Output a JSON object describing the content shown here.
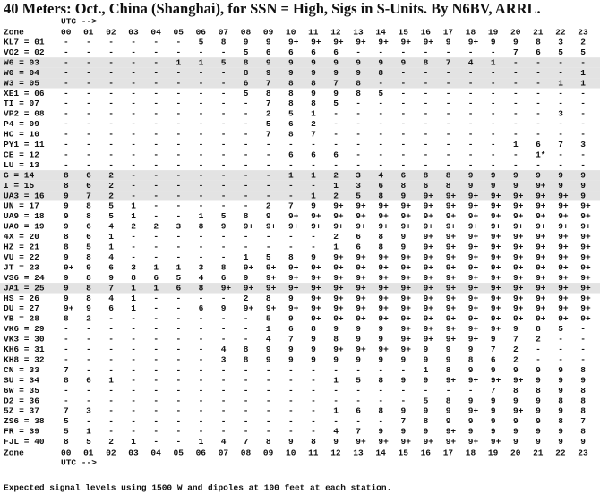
{
  "header": {
    "title": "40 Meters: Oct., China (Shanghai), for SSN = High, Sigs in S-Units. By N6BV, ARRL."
  },
  "table": {
    "utc_label": "UTC -->",
    "zone_label": "Zone",
    "hours": [
      "00",
      "01",
      "02",
      "03",
      "04",
      "05",
      "06",
      "07",
      "08",
      "09",
      "10",
      "11",
      "12",
      "13",
      "14",
      "15",
      "16",
      "17",
      "18",
      "19",
      "20",
      "21",
      "22",
      "23"
    ],
    "rows": [
      {
        "zone": "KL7 = 01",
        "shaded": false,
        "values": [
          "-",
          "-",
          "-",
          "-",
          "-",
          "-",
          "5",
          "8",
          "9",
          "9",
          "9+",
          "9+",
          "9+",
          "9+",
          "9+",
          "9+",
          "9+",
          "9",
          "9+",
          "9",
          "9",
          "8",
          "3",
          "2"
        ]
      },
      {
        "zone": "VO2 = 02",
        "shaded": false,
        "values": [
          "-",
          "-",
          "-",
          "-",
          "-",
          "-",
          "-",
          "-",
          "5",
          "6",
          "6",
          "6",
          "6",
          "-",
          "-",
          "-",
          "-",
          "-",
          "-",
          "-",
          "7",
          "6",
          "5",
          "5"
        ]
      },
      {
        "zone": "W6 = 03",
        "shaded": true,
        "values": [
          "-",
          "-",
          "-",
          "-",
          "-",
          "1",
          "1",
          "5",
          "8",
          "9",
          "9",
          "9",
          "9",
          "9",
          "9",
          "9",
          "8",
          "7",
          "4",
          "1",
          "-",
          "-",
          "-",
          "-"
        ]
      },
      {
        "zone": "W0 = 04",
        "shaded": true,
        "values": [
          "-",
          "-",
          "-",
          "-",
          "-",
          "-",
          "-",
          "-",
          "8",
          "9",
          "9",
          "9",
          "9",
          "9",
          "8",
          "-",
          "-",
          "-",
          "-",
          "-",
          "-",
          "-",
          "-",
          "1"
        ]
      },
      {
        "zone": "W3 = 05",
        "shaded": true,
        "values": [
          "-",
          "-",
          "-",
          "-",
          "-",
          "-",
          "-",
          "-",
          "6",
          "7",
          "8",
          "8",
          "7",
          "8",
          "-",
          "-",
          "-",
          "-",
          "-",
          "-",
          "-",
          "-",
          "1",
          "1"
        ]
      },
      {
        "zone": "XE1 = 06",
        "shaded": false,
        "values": [
          "-",
          "-",
          "-",
          "-",
          "-",
          "-",
          "-",
          "-",
          "5",
          "8",
          "8",
          "9",
          "9",
          "8",
          "5",
          "-",
          "-",
          "-",
          "-",
          "-",
          "-",
          "-",
          "-",
          "-"
        ]
      },
      {
        "zone": "TI = 07",
        "shaded": false,
        "values": [
          "-",
          "-",
          "-",
          "-",
          "-",
          "-",
          "-",
          "-",
          "-",
          "7",
          "8",
          "8",
          "5",
          "-",
          "-",
          "-",
          "-",
          "-",
          "-",
          "-",
          "-",
          "-",
          "-",
          "-"
        ]
      },
      {
        "zone": "VP2 = 08",
        "shaded": false,
        "values": [
          "-",
          "-",
          "-",
          "-",
          "-",
          "-",
          "-",
          "-",
          "-",
          "2",
          "5",
          "1",
          "-",
          "-",
          "-",
          "-",
          "-",
          "-",
          "-",
          "-",
          "-",
          "-",
          "3",
          "-"
        ]
      },
      {
        "zone": "P4 = 09",
        "shaded": false,
        "values": [
          "-",
          "-",
          "-",
          "-",
          "-",
          "-",
          "-",
          "-",
          "-",
          "5",
          "6",
          "2",
          "-",
          "-",
          "-",
          "-",
          "-",
          "-",
          "-",
          "-",
          "-",
          "-",
          "-",
          "-"
        ]
      },
      {
        "zone": "HC = 10",
        "shaded": false,
        "values": [
          "-",
          "-",
          "-",
          "-",
          "-",
          "-",
          "-",
          "-",
          "-",
          "7",
          "8",
          "7",
          "-",
          "-",
          "-",
          "-",
          "-",
          "-",
          "-",
          "-",
          "-",
          "-",
          "-",
          "-"
        ]
      },
      {
        "zone": "PY1 = 11",
        "shaded": false,
        "values": [
          "-",
          "-",
          "-",
          "-",
          "-",
          "-",
          "-",
          "-",
          "-",
          "-",
          "-",
          "-",
          "-",
          "-",
          "-",
          "-",
          "-",
          "-",
          "-",
          "-",
          "1",
          "6",
          "7",
          "3"
        ]
      },
      {
        "zone": "CE = 12",
        "shaded": false,
        "values": [
          "-",
          "-",
          "-",
          "-",
          "-",
          "-",
          "-",
          "-",
          "-",
          "-",
          "6",
          "6",
          "6",
          "-",
          "-",
          "-",
          "-",
          "-",
          "-",
          "-",
          "-",
          "1*",
          "-",
          "-"
        ]
      },
      {
        "zone": "LU = 13",
        "shaded": false,
        "values": [
          "-",
          "-",
          "-",
          "-",
          "-",
          "-",
          "-",
          "-",
          "-",
          "-",
          "-",
          "-",
          "-",
          "-",
          "-",
          "-",
          "-",
          "-",
          "-",
          "-",
          "-",
          "-",
          "-",
          "-"
        ]
      },
      {
        "zone": "G = 14",
        "shaded": true,
        "values": [
          "8",
          "6",
          "2",
          "-",
          "-",
          "-",
          "-",
          "-",
          "-",
          "-",
          "1",
          "1",
          "2",
          "3",
          "4",
          "6",
          "8",
          "8",
          "9",
          "9",
          "9",
          "9",
          "9",
          "9"
        ]
      },
      {
        "zone": "I = 15",
        "shaded": true,
        "values": [
          "8",
          "6",
          "2",
          "-",
          "-",
          "-",
          "-",
          "-",
          "-",
          "-",
          "-",
          "-",
          "1",
          "3",
          "6",
          "8",
          "6",
          "8",
          "9",
          "9",
          "9",
          "9+",
          "9",
          "9"
        ]
      },
      {
        "zone": "UA3 = 16",
        "shaded": true,
        "values": [
          "9",
          "7",
          "2",
          "-",
          "-",
          "-",
          "-",
          "-",
          "-",
          "-",
          "-",
          "1",
          "2",
          "5",
          "8",
          "9",
          "9+",
          "9+",
          "9+",
          "9+",
          "9+",
          "9+",
          "9+",
          "9"
        ]
      },
      {
        "zone": "UN = 17",
        "shaded": false,
        "values": [
          "9",
          "8",
          "5",
          "1",
          "-",
          "-",
          "-",
          "-",
          "-",
          "2",
          "7",
          "9",
          "9+",
          "9+",
          "9+",
          "9+",
          "9+",
          "9+",
          "9+",
          "9+",
          "9+",
          "9+",
          "9+",
          "9+"
        ]
      },
      {
        "zone": "UA9 = 18",
        "shaded": false,
        "values": [
          "9",
          "8",
          "5",
          "1",
          "-",
          "-",
          "1",
          "5",
          "8",
          "9",
          "9+",
          "9+",
          "9+",
          "9+",
          "9+",
          "9+",
          "9+",
          "9+",
          "9+",
          "9+",
          "9+",
          "9+",
          "9+",
          "9+"
        ]
      },
      {
        "zone": "UA0 = 19",
        "shaded": false,
        "values": [
          "9",
          "6",
          "4",
          "2",
          "2",
          "3",
          "8",
          "9",
          "9+",
          "9+",
          "9+",
          "9+",
          "9+",
          "9+",
          "9+",
          "9+",
          "9+",
          "9+",
          "9+",
          "9+",
          "9+",
          "9+",
          "9+",
          "9+"
        ]
      },
      {
        "zone": "4X = 20",
        "shaded": false,
        "values": [
          "8",
          "6",
          "1",
          "-",
          "-",
          "-",
          "-",
          "-",
          "-",
          "-",
          "-",
          "-",
          "2",
          "6",
          "8",
          "9",
          "9+",
          "9+",
          "9+",
          "9+",
          "9+",
          "9+",
          "9+",
          "9+"
        ]
      },
      {
        "zone": "HZ = 21",
        "shaded": false,
        "values": [
          "8",
          "5",
          "1",
          "-",
          "-",
          "-",
          "-",
          "-",
          "-",
          "-",
          "-",
          "-",
          "1",
          "6",
          "8",
          "9",
          "9+",
          "9+",
          "9+",
          "9+",
          "9+",
          "9+",
          "9+",
          "9+"
        ]
      },
      {
        "zone": "VU = 22",
        "shaded": false,
        "values": [
          "9",
          "8",
          "4",
          "-",
          "-",
          "-",
          "-",
          "-",
          "1",
          "5",
          "8",
          "9",
          "9+",
          "9+",
          "9+",
          "9+",
          "9+",
          "9+",
          "9+",
          "9+",
          "9+",
          "9+",
          "9+",
          "9+"
        ]
      },
      {
        "zone": "JT = 23",
        "shaded": false,
        "values": [
          "9+",
          "9",
          "6",
          "3",
          "1",
          "1",
          "3",
          "8",
          "9+",
          "9+",
          "9+",
          "9+",
          "9+",
          "9+",
          "9+",
          "9+",
          "9+",
          "9+",
          "9+",
          "9+",
          "9+",
          "9+",
          "9+",
          "9+"
        ]
      },
      {
        "zone": "VS6 = 24",
        "shaded": false,
        "values": [
          "9",
          "8",
          "9",
          "8",
          "6",
          "5",
          "4",
          "6",
          "9",
          "9+",
          "9+",
          "9+",
          "9+",
          "9+",
          "9+",
          "9+",
          "9+",
          "9+",
          "9+",
          "9+",
          "9+",
          "9+",
          "9+",
          "9+"
        ]
      },
      {
        "zone": "JA1 = 25",
        "shaded": true,
        "values": [
          "9",
          "8",
          "7",
          "1",
          "1",
          "6",
          "8",
          "9+",
          "9+",
          "9+",
          "9+",
          "9+",
          "9+",
          "9+",
          "9+",
          "9+",
          "9+",
          "9+",
          "9+",
          "9+",
          "9+",
          "9+",
          "9+",
          "9+"
        ]
      },
      {
        "zone": "HS = 26",
        "shaded": false,
        "values": [
          "9",
          "8",
          "4",
          "1",
          "-",
          "-",
          "-",
          "-",
          "2",
          "8",
          "9",
          "9+",
          "9+",
          "9+",
          "9+",
          "9+",
          "9+",
          "9+",
          "9+",
          "9+",
          "9+",
          "9+",
          "9+",
          "9+"
        ]
      },
      {
        "zone": "DU = 27",
        "shaded": false,
        "values": [
          "9+",
          "9",
          "6",
          "1",
          "-",
          "-",
          "6",
          "9",
          "9+",
          "9+",
          "9+",
          "9+",
          "9+",
          "9+",
          "9+",
          "9+",
          "9+",
          "9+",
          "9+",
          "9+",
          "9+",
          "9+",
          "9+",
          "9+"
        ]
      },
      {
        "zone": "YB = 28",
        "shaded": false,
        "values": [
          "8",
          "2",
          "-",
          "-",
          "-",
          "-",
          "-",
          "-",
          "-",
          "5",
          "9",
          "9+",
          "9+",
          "9+",
          "9+",
          "9+",
          "9+",
          "9+",
          "9+",
          "9+",
          "9+",
          "9+",
          "9+",
          "9+"
        ]
      },
      {
        "zone": "VK6 = 29",
        "shaded": false,
        "values": [
          "-",
          "-",
          "-",
          "-",
          "-",
          "-",
          "-",
          "-",
          "-",
          "1",
          "6",
          "8",
          "9",
          "9",
          "9",
          "9+",
          "9+",
          "9+",
          "9+",
          "9+",
          "9",
          "8",
          "5",
          "-"
        ]
      },
      {
        "zone": "VK3 = 30",
        "shaded": false,
        "values": [
          "-",
          "-",
          "-",
          "-",
          "-",
          "-",
          "-",
          "-",
          "-",
          "4",
          "7",
          "9",
          "8",
          "9",
          "9",
          "9+",
          "9+",
          "9+",
          "9+",
          "9",
          "7",
          "2",
          "-",
          "-"
        ]
      },
      {
        "zone": "KH6 = 31",
        "shaded": false,
        "values": [
          "-",
          "-",
          "-",
          "-",
          "-",
          "-",
          "-",
          "4",
          "8",
          "9",
          "9",
          "9",
          "9+",
          "9+",
          "9+",
          "9+",
          "9",
          "9",
          "9",
          "7",
          "2",
          "-",
          "-",
          "-"
        ]
      },
      {
        "zone": "KH8 = 32",
        "shaded": false,
        "values": [
          "-",
          "-",
          "-",
          "-",
          "-",
          "-",
          "-",
          "3",
          "8",
          "9",
          "9",
          "9",
          "9",
          "9",
          "9",
          "9",
          "9",
          "9",
          "8",
          "6",
          "2",
          "-",
          "-",
          "-"
        ]
      },
      {
        "zone": "CN = 33",
        "shaded": false,
        "values": [
          "7",
          "-",
          "-",
          "-",
          "-",
          "-",
          "-",
          "-",
          "-",
          "-",
          "-",
          "-",
          "-",
          "-",
          "-",
          "-",
          "1",
          "8",
          "9",
          "9",
          "9",
          "9",
          "9",
          "8"
        ]
      },
      {
        "zone": "SU = 34",
        "shaded": false,
        "values": [
          "8",
          "6",
          "1",
          "-",
          "-",
          "-",
          "-",
          "-",
          "-",
          "-",
          "-",
          "-",
          "1",
          "5",
          "8",
          "9",
          "9",
          "9+",
          "9+",
          "9+",
          "9+",
          "9",
          "9",
          "9"
        ]
      },
      {
        "zone": "6W = 35",
        "shaded": false,
        "values": [
          "-",
          "-",
          "-",
          "-",
          "-",
          "-",
          "-",
          "-",
          "-",
          "-",
          "-",
          "-",
          "-",
          "-",
          "-",
          "-",
          "-",
          "-",
          "-",
          "7",
          "8",
          "8",
          "9",
          "8"
        ]
      },
      {
        "zone": "D2 = 36",
        "shaded": false,
        "values": [
          "-",
          "-",
          "-",
          "-",
          "-",
          "-",
          "-",
          "-",
          "-",
          "-",
          "-",
          "-",
          "-",
          "-",
          "-",
          "-",
          "5",
          "8",
          "9",
          "9",
          "9",
          "9",
          "8",
          "8"
        ]
      },
      {
        "zone": "5Z = 37",
        "shaded": false,
        "values": [
          "7",
          "3",
          "-",
          "-",
          "-",
          "-",
          "-",
          "-",
          "-",
          "-",
          "-",
          "-",
          "1",
          "6",
          "8",
          "9",
          "9",
          "9",
          "9+",
          "9",
          "9+",
          "9",
          "9",
          "8"
        ]
      },
      {
        "zone": "ZS6 = 38",
        "shaded": false,
        "values": [
          "5",
          "-",
          "-",
          "-",
          "-",
          "-",
          "-",
          "-",
          "-",
          "-",
          "-",
          "-",
          "-",
          "-",
          "-",
          "7",
          "8",
          "9",
          "9",
          "9",
          "9",
          "9",
          "8",
          "7"
        ]
      },
      {
        "zone": "FR = 39",
        "shaded": false,
        "values": [
          "5",
          "1",
          "-",
          "-",
          "-",
          "-",
          "-",
          "-",
          "-",
          "-",
          "-",
          "-",
          "4",
          "7",
          "9",
          "9",
          "9",
          "9+",
          "9",
          "9",
          "9",
          "9",
          "9",
          "8"
        ]
      },
      {
        "zone": "FJL = 40",
        "shaded": false,
        "values": [
          "8",
          "5",
          "2",
          "1",
          "-",
          "-",
          "1",
          "4",
          "7",
          "8",
          "9",
          "8",
          "9",
          "9+",
          "9+",
          "9+",
          "9+",
          "9+",
          "9+",
          "9+",
          "9",
          "9",
          "9",
          "9"
        ]
      }
    ]
  },
  "footer": {
    "note": "Expected signal levels using 1500 W and dipoles at 100 feet at each station."
  }
}
